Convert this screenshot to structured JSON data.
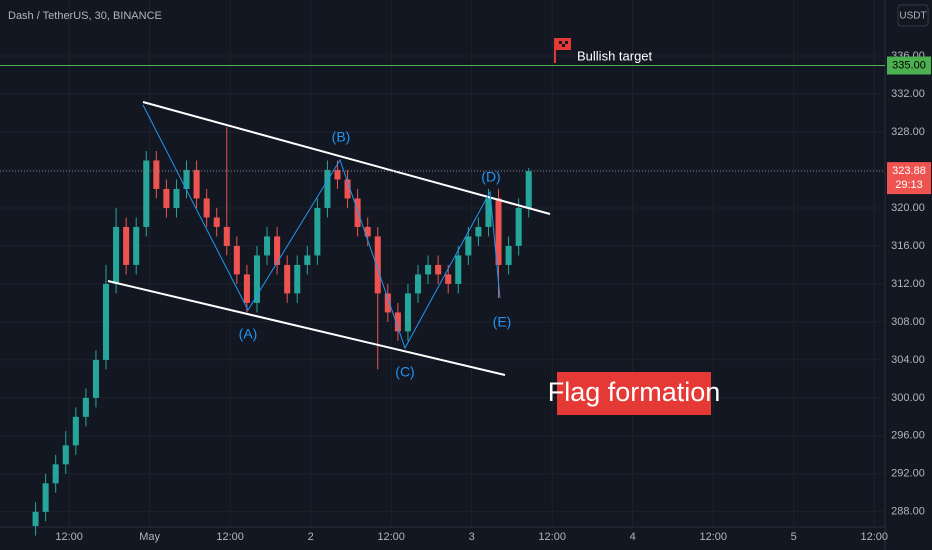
{
  "header": {
    "symbol": "Dash / TetherUS, 30, BINANCE",
    "currency": "USDT"
  },
  "chart_data": {
    "type": "candlestick",
    "x": [
      7,
      8.5,
      10,
      11.5,
      13,
      14.5,
      16,
      17.5,
      19,
      20.5,
      22,
      23.5,
      25,
      26.5,
      28,
      29.5,
      31,
      32.5,
      34,
      35.5,
      37,
      38.5,
      40,
      41.5,
      43,
      44.5,
      46,
      47.5,
      49,
      50.5,
      52,
      53.5,
      55,
      56.5,
      58,
      59.5,
      61,
      62.5,
      64,
      65.5,
      67,
      68.5,
      70,
      71.5,
      73,
      74.5,
      76,
      77.5,
      79,
      80.5
    ],
    "open": [
      286.5,
      288,
      291,
      293,
      295,
      298,
      300,
      304,
      312,
      318,
      314,
      318,
      325,
      322,
      320,
      322,
      324,
      321,
      319,
      318,
      316,
      313,
      310,
      315,
      317,
      314,
      311,
      314,
      315,
      320,
      324,
      323,
      321,
      318,
      317,
      311,
      309,
      307,
      311,
      313,
      314,
      313,
      312,
      315,
      317,
      318,
      321,
      314,
      316,
      320
    ],
    "high": [
      289,
      292,
      294,
      296.5,
      299,
      301,
      305,
      314,
      320,
      319,
      319,
      326,
      326,
      323,
      323,
      325,
      325,
      322,
      320,
      328.5,
      317,
      314,
      316,
      318,
      318,
      315,
      315,
      316,
      321,
      325,
      325,
      324,
      322,
      319,
      318,
      312,
      310,
      312,
      314,
      315,
      315,
      314,
      316,
      318,
      319,
      322,
      322,
      317,
      321,
      324.2
    ],
    "low": [
      285.5,
      287,
      290,
      292,
      294,
      297,
      299,
      303,
      311,
      313,
      313,
      317,
      321,
      319,
      319,
      321,
      320,
      318,
      317,
      315,
      312,
      309,
      309,
      314,
      313,
      310,
      310,
      313,
      314,
      319,
      322,
      320,
      317,
      316,
      303,
      308,
      306,
      306,
      310,
      312,
      312,
      311,
      311,
      314,
      316,
      317,
      310.5,
      313,
      315,
      319
    ],
    "close": [
      288,
      291,
      293,
      295,
      298,
      300,
      304,
      312,
      318,
      314,
      318,
      325,
      322,
      320,
      322,
      324,
      321,
      319,
      318,
      316,
      313,
      310,
      315,
      317,
      314,
      311,
      314,
      315,
      320,
      324,
      323,
      321,
      318,
      317,
      311,
      309,
      307,
      311,
      313,
      314,
      313,
      312,
      315,
      317,
      318,
      321,
      314,
      316,
      320,
      323.88
    ],
    "up_color": "#26a69a",
    "down_color": "#ef5350",
    "xlim": [
      1.7,
      133.6
    ],
    "xticks": [
      {
        "value": 12,
        "label": "12:00"
      },
      {
        "value": 24,
        "label": "May"
      },
      {
        "value": 36,
        "label": "12:00"
      },
      {
        "value": 48,
        "label": "2"
      },
      {
        "value": 60,
        "label": "12:00"
      },
      {
        "value": 72,
        "label": "3"
      },
      {
        "value": 84,
        "label": "12:00"
      },
      {
        "value": 96,
        "label": "4"
      },
      {
        "value": 108,
        "label": "12:00"
      },
      {
        "value": 120,
        "label": "5"
      },
      {
        "value": 132,
        "label": "12:00"
      }
    ],
    "ylim": [
      286.4,
      341.9
    ],
    "yticks": [
      {
        "value": 288,
        "label": "288.00"
      },
      {
        "value": 292,
        "label": "292.00"
      },
      {
        "value": 296,
        "label": "296.00"
      },
      {
        "value": 300,
        "label": "300.00"
      },
      {
        "value": 304,
        "label": "304.00"
      },
      {
        "value": 308,
        "label": "308.00"
      },
      {
        "value": 312,
        "label": "312.00"
      },
      {
        "value": 316,
        "label": "316.00"
      },
      {
        "value": 320,
        "label": "320.00"
      },
      {
        "value": 324,
        "label": "324.00"
      },
      {
        "value": 328,
        "label": "328.00"
      },
      {
        "value": 332,
        "label": "332.00"
      },
      {
        "value": 336,
        "label": "336.00"
      }
    ],
    "grid": true,
    "target": {
      "value": 335,
      "label": "335.00",
      "color": "#4caf50",
      "text": "Bullish target"
    },
    "last_price": {
      "value": 323.88,
      "label": "323.88",
      "countdown": "29:13"
    },
    "annotations": {
      "waves": [
        "(A)",
        "(B)",
        "(C)",
        "(D)",
        "(E)"
      ],
      "pattern": "Flag formation"
    }
  }
}
